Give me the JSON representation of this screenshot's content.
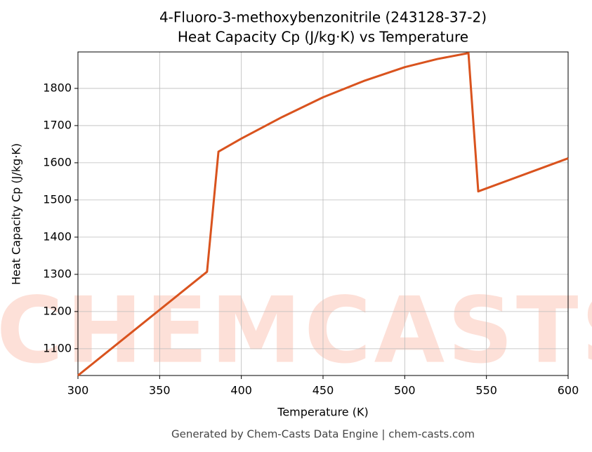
{
  "chart_data": {
    "type": "line",
    "title": "4-Fluoro-3-methoxybenzonitrile (243128-37-2)",
    "subtitle": "Heat Capacity Cp (J/kg·K) vs Temperature",
    "xlabel": "Temperature (K)",
    "ylabel": "Heat Capacity Cp (J/kg·K)",
    "footer": "Generated by Chem-Casts Data Engine | chem-casts.com",
    "watermark": "CHEMCASTS",
    "x": [
      300,
      379,
      386,
      400,
      425,
      450,
      475,
      500,
      520,
      539,
      545,
      600
    ],
    "series": [
      {
        "name": "Heat Capacity Cp",
        "color": "#d9531e",
        "values": [
          1028,
          1307,
          1630,
          1665,
          1723,
          1776,
          1820,
          1857,
          1879,
          1895,
          1523,
          1612
        ]
      }
    ],
    "xlim": [
      300,
      600
    ],
    "xticks": [
      300,
      350,
      400,
      450,
      500,
      550,
      600
    ],
    "ylim": [
      1028,
      1898
    ],
    "yticks": [
      1100,
      1200,
      1300,
      1400,
      1500,
      1600,
      1700,
      1800
    ],
    "grid": true
  }
}
